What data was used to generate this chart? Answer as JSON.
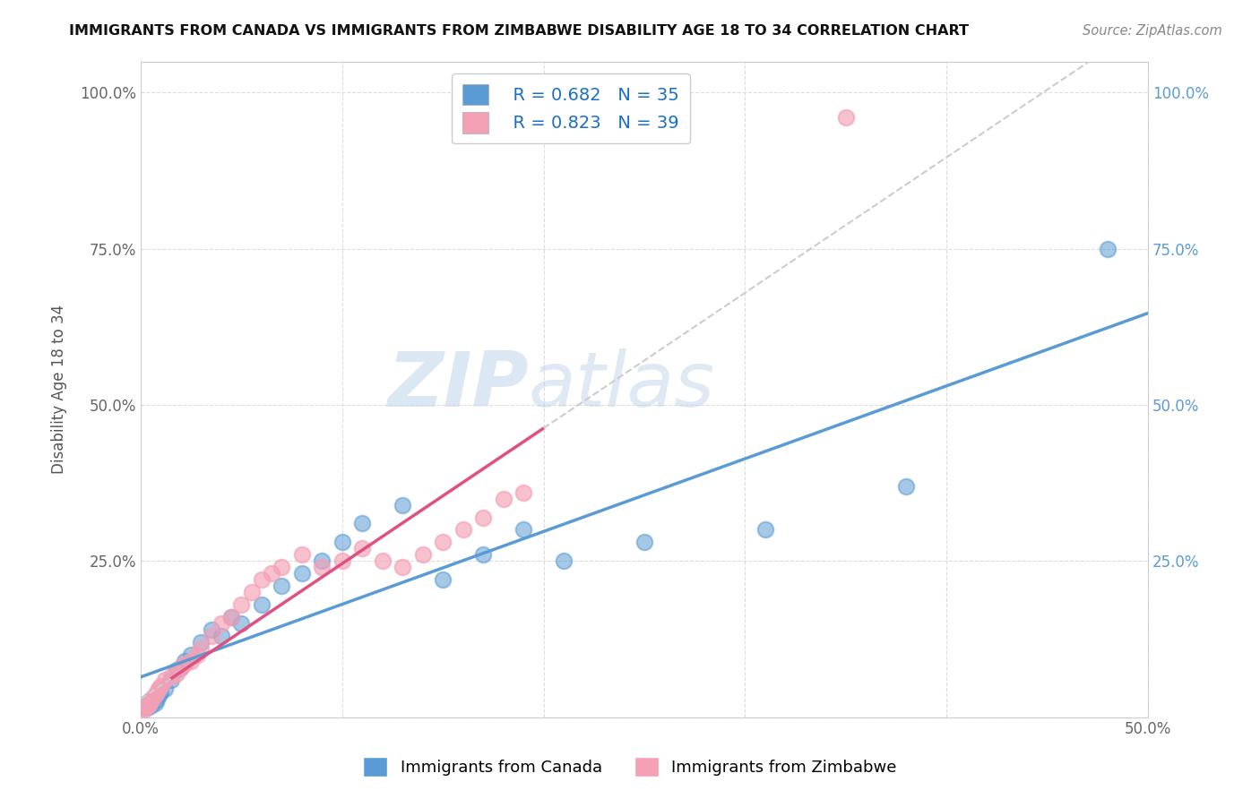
{
  "title": "IMMIGRANTS FROM CANADA VS IMMIGRANTS FROM ZIMBABWE DISABILITY AGE 18 TO 34 CORRELATION CHART",
  "source": "Source: ZipAtlas.com",
  "ylabel": "Disability Age 18 to 34",
  "xlim": [
    0,
    50
  ],
  "ylim": [
    0,
    105
  ],
  "x_ticks": [
    0,
    10,
    20,
    30,
    40,
    50
  ],
  "x_tick_labels": [
    "0.0%",
    "",
    "",
    "",
    "",
    "50.0%"
  ],
  "y_ticks": [
    0,
    25,
    50,
    75,
    100
  ],
  "y_tick_labels": [
    "",
    "25.0%",
    "50.0%",
    "75.0%",
    "100.0%"
  ],
  "canada_color": "#5b9bd5",
  "zimbabwe_color": "#f4a0b5",
  "zimbabwe_line_color": "#e05080",
  "canada_R": 0.682,
  "canada_N": 35,
  "zimbabwe_R": 0.823,
  "zimbabwe_N": 39,
  "watermark_zip": "ZIP",
  "watermark_atlas": "atlas",
  "canada_scatter_x": [
    0.2,
    0.3,
    0.4,
    0.5,
    0.6,
    0.7,
    0.8,
    0.9,
    1.0,
    1.2,
    1.5,
    1.8,
    2.0,
    2.2,
    2.5,
    3.0,
    3.5,
    4.0,
    4.5,
    5.0,
    6.0,
    7.0,
    8.0,
    9.0,
    10.0,
    11.0,
    13.0,
    15.0,
    17.0,
    19.0,
    21.0,
    25.0,
    31.0,
    38.0,
    48.0
  ],
  "canada_scatter_y": [
    2.0,
    1.5,
    2.5,
    1.8,
    3.0,
    2.2,
    2.8,
    3.5,
    4.0,
    4.5,
    6.0,
    7.5,
    8.0,
    9.0,
    10.0,
    12.0,
    14.0,
    13.0,
    16.0,
    15.0,
    18.0,
    21.0,
    23.0,
    25.0,
    28.0,
    31.0,
    34.0,
    22.0,
    26.0,
    30.0,
    25.0,
    28.0,
    30.0,
    37.0,
    75.0
  ],
  "zimbabwe_scatter_x": [
    0.1,
    0.2,
    0.3,
    0.4,
    0.5,
    0.6,
    0.7,
    0.8,
    0.9,
    1.0,
    1.2,
    1.5,
    1.8,
    2.0,
    2.2,
    2.5,
    2.8,
    3.0,
    3.5,
    4.0,
    4.5,
    5.0,
    5.5,
    6.0,
    6.5,
    7.0,
    8.0,
    9.0,
    10.0,
    11.0,
    12.0,
    13.0,
    14.0,
    15.0,
    16.0,
    17.0,
    18.0,
    19.0,
    35.0
  ],
  "zimbabwe_scatter_y": [
    1.5,
    1.2,
    1.8,
    2.0,
    2.5,
    3.0,
    3.5,
    4.0,
    4.5,
    5.0,
    6.0,
    6.5,
    7.0,
    8.0,
    8.5,
    9.0,
    10.0,
    11.0,
    13.0,
    15.0,
    16.0,
    18.0,
    20.0,
    22.0,
    23.0,
    24.0,
    26.0,
    24.0,
    25.0,
    27.0,
    25.0,
    24.0,
    26.0,
    28.0,
    30.0,
    32.0,
    35.0,
    36.0,
    96.0
  ],
  "background_color": "#ffffff",
  "grid_color": "#dddddd",
  "canada_line_start_x": 0,
  "canada_line_end_x": 50,
  "zimbabwe_solid_start_x": 1.5,
  "zimbabwe_solid_end_x": 20,
  "zimbabwe_dash_end_x": 50
}
